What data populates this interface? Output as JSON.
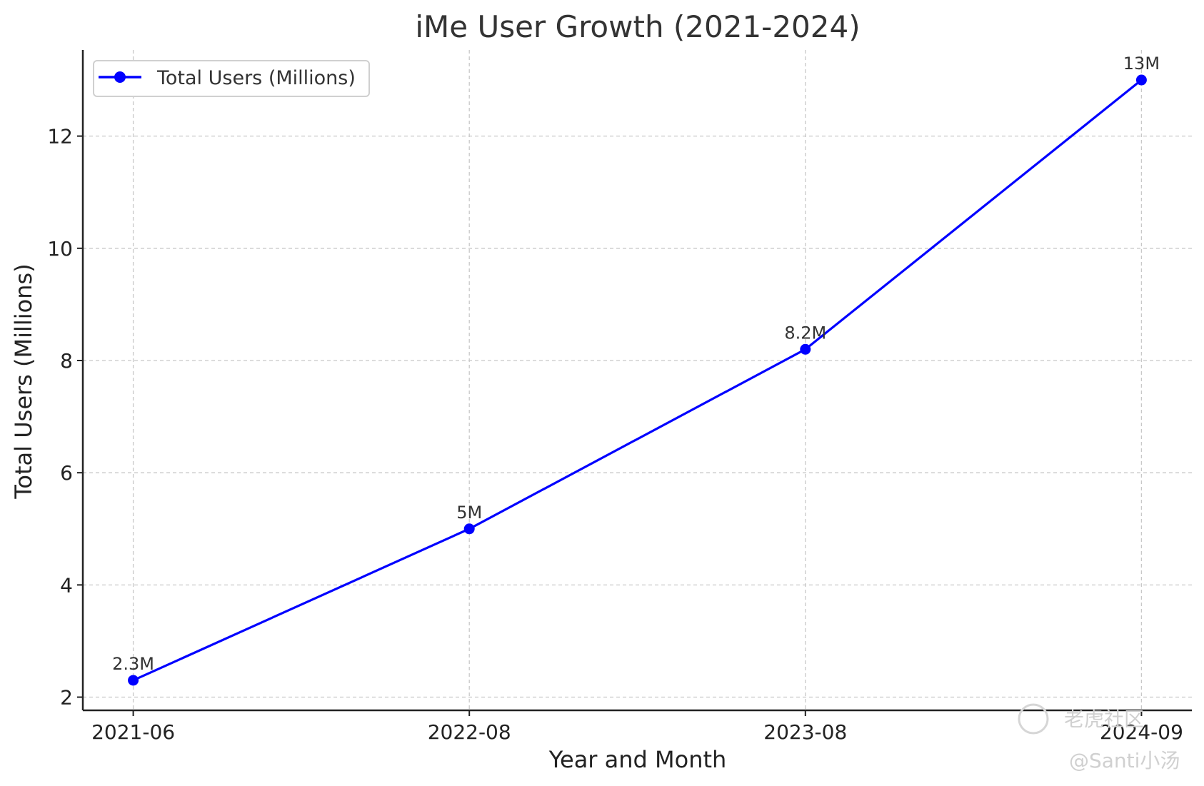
{
  "chart_data": {
    "type": "line",
    "title": "iMe User Growth (2021-2024)",
    "xlabel": "Year and Month",
    "ylabel": "Total Users (Millions)",
    "categories": [
      "2021-06",
      "2022-08",
      "2023-08",
      "2024-09"
    ],
    "series": [
      {
        "name": "Total Users (Millions)",
        "values": [
          2.3,
          5,
          8.2,
          13
        ],
        "data_labels": [
          "2.3M",
          "5M",
          "8.2M",
          "13M"
        ],
        "color": "#0000ff",
        "marker": "circle"
      }
    ],
    "ylim": [
      1.765,
      13.535
    ],
    "yticks": [
      2,
      4,
      6,
      8,
      10,
      12
    ],
    "ytick_labels": [
      "2",
      "4",
      "6",
      "8",
      "10",
      "12"
    ],
    "grid": true,
    "legend": "top-left"
  },
  "watermark": {
    "line1": "老虎社区",
    "line2": "@Santi小汤"
  }
}
